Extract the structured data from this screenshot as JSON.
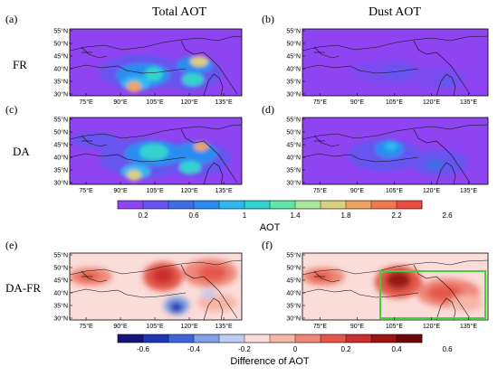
{
  "column_titles": [
    "Total AOT",
    "Dust AOT"
  ],
  "row_labels": [
    "FR",
    "DA",
    "DA-FR"
  ],
  "panel_labels": [
    "(a)",
    "(b)",
    "(c)",
    "(d)",
    "(e)",
    "(f)"
  ],
  "lat_ticks": [
    "55°N",
    "50°N",
    "45°N",
    "40°N",
    "35°N",
    "30°N"
  ],
  "lon_ticks": [
    "75°E",
    "90°E",
    "105°E",
    "120°E",
    "135°E"
  ],
  "colorbar_aot": {
    "title": "AOT",
    "labels": [
      "0.2",
      "0.6",
      "1",
      "1.4",
      "1.8",
      "2.2",
      "2.6"
    ],
    "colors": [
      "#8e44f0",
      "#6655ee",
      "#3f6de6",
      "#2a8cf0",
      "#30b7f2",
      "#35d3cf",
      "#62e6a8",
      "#a8e89a",
      "#d8cf80",
      "#eda563",
      "#ef7a50",
      "#e84f3e"
    ]
  },
  "colorbar_diff": {
    "title": "Difference of AOT",
    "labels": [
      "-0.6",
      "-0.4",
      "-0.2",
      "0",
      "0.2",
      "0.4",
      "0.6"
    ],
    "colors": [
      "#14147a",
      "#1f35b0",
      "#3f64d6",
      "#7f9fe6",
      "#bfcdf2",
      "#fadcd8",
      "#f6b6a8",
      "#ef8778",
      "#e4584b",
      "#c92f2f",
      "#9a1414",
      "#6b0808"
    ]
  },
  "colors": {
    "aot_background": "#8e44f0",
    "diff_background": "#fadcd8",
    "highlight_box": "#3fd23a"
  }
}
